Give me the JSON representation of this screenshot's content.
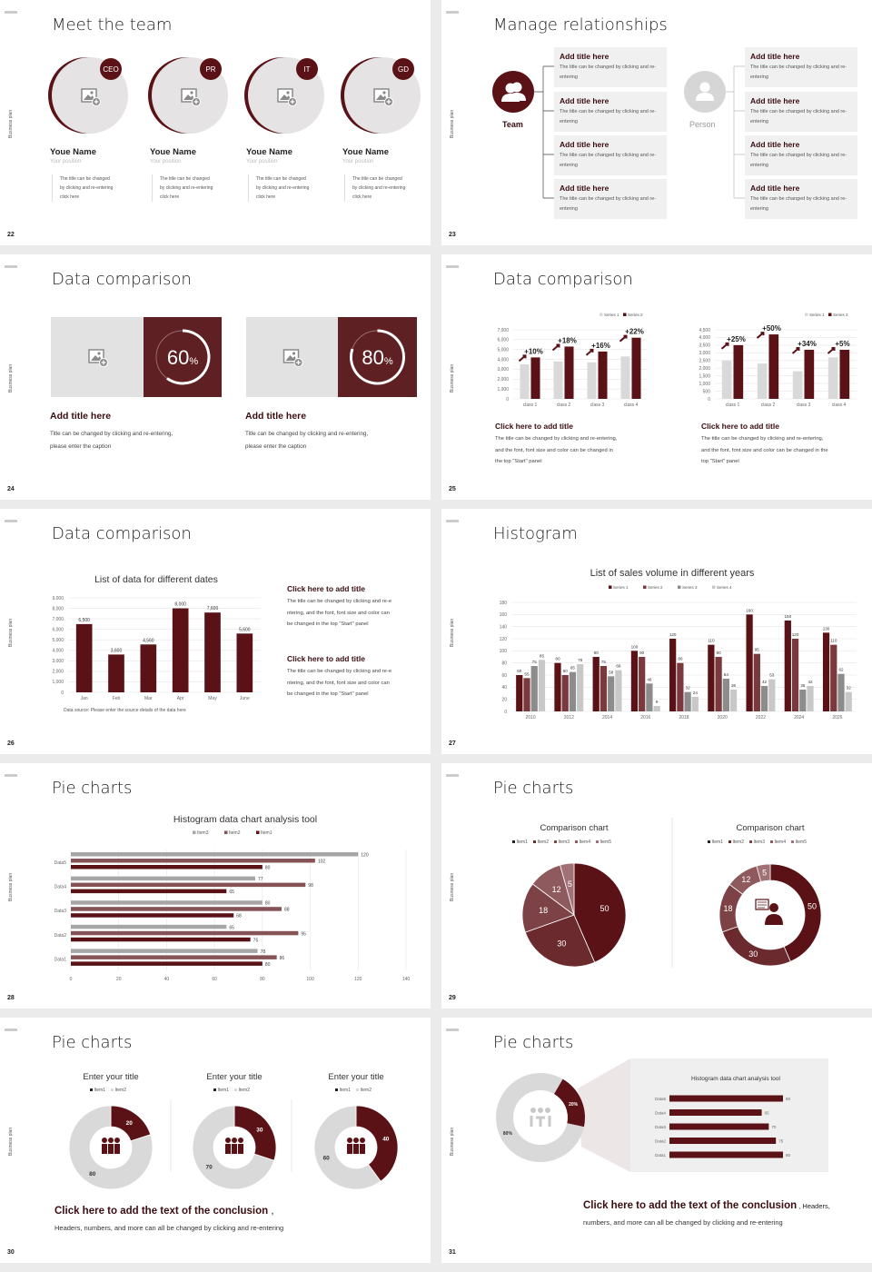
{
  "common": {
    "side_label": "Business plan"
  },
  "s22": {
    "number": "22",
    "title": "Meet the team",
    "members": [
      {
        "badge": "CEO",
        "name": "Youe Name",
        "position": "Your position",
        "desc": [
          "The title can be changed",
          "by clicking and re-entering",
          "click here"
        ]
      },
      {
        "badge": "PR",
        "name": "Youe Name",
        "position": "Your position",
        "desc": [
          "The title can be changed",
          "by clicking and re-entering",
          "click here"
        ]
      },
      {
        "badge": "IT",
        "name": "Youe Name",
        "position": "Your position",
        "desc": [
          "The title can be changed",
          "by clicking and re-entering",
          "click here"
        ]
      },
      {
        "badge": "GD",
        "name": "Youe Name",
        "position": "Your position",
        "desc": [
          "The title can be changed",
          "by clicking and re-entering",
          "click here"
        ]
      }
    ]
  },
  "s23": {
    "number": "23",
    "title": "Manage relationships",
    "team_label": "Team",
    "person_label": "Person",
    "box_title": "Add title here",
    "box_text": "The title can be changed by clicking and re-entering"
  },
  "s24": {
    "number": "24",
    "title": "Data comparison",
    "cards": [
      {
        "percent": "60",
        "unit": "%",
        "value": 0.6,
        "title": "Add title here",
        "text1": "Title can be changed by clicking and re-entering,",
        "text2": "please enter the caption"
      },
      {
        "percent": "80",
        "unit": "%",
        "value": 0.8,
        "title": "Add title here",
        "text1": "Title can be changed by clicking and re-entering,",
        "text2": "please enter the caption"
      }
    ]
  },
  "s25": {
    "number": "25",
    "title": "Data comparison",
    "blocks": [
      {
        "title": "Click here to add title",
        "lines": [
          "The title can be changed by clicking and re-entering,",
          "and the font, font size and color can be changed in",
          "the top \"Start\" panel"
        ]
      },
      {
        "title": "Click here to add title",
        "lines": [
          "The title can be changed by clicking and re-entering,",
          "and the font, font size and color can be changed in the",
          "top \"Start\" panel"
        ]
      }
    ]
  },
  "s26": {
    "number": "26",
    "title": "Data comparison",
    "source": "Data source: Please enter the source details of the data here",
    "blocks": [
      {
        "title": "Click here to add title",
        "lines": [
          "The title can be changed by clicking and re-e",
          "ntering, and the font, font size and color can",
          "be changed in the top \"Start\" panel"
        ]
      },
      {
        "title": "Click here to add title",
        "lines": [
          "The title can be changed by clicking and re-e",
          "ntering, and the font, font size and color can",
          "be changed in the top \"Start\" panel"
        ]
      }
    ]
  },
  "s27": {
    "number": "27",
    "title": "Histogram"
  },
  "s28": {
    "number": "28",
    "title": "Pie charts"
  },
  "s29": {
    "number": "29",
    "title": "Pie charts"
  },
  "s30": {
    "number": "30",
    "title": "Pie charts",
    "conclusion": "Click here to add the text of the conclusion",
    "conclusion_sep": " ,",
    "text": "Headers, numbers, and more can all be changed by clicking and re-entering"
  },
  "s31": {
    "number": "31",
    "title": "Pie charts",
    "conclusion": "Click here to add the text of the conclusion",
    "conclusion_tail": " ,  Headers,",
    "text": "numbers, and more can all be changed by clicking and re-entering"
  },
  "colors": {
    "dark": "#5a1216",
    "mid": "#7a3a3d",
    "gray": "#d9d9d9",
    "midgray": "#8c8c8c",
    "lightgray": "#bfbfbf",
    "panel": "#f0f0f0"
  },
  "chart_data": [
    {
      "id": "s25a",
      "type": "bar",
      "categories": [
        "class 1",
        "class 2",
        "class 3",
        "class 4"
      ],
      "series": [
        {
          "name": "Series 1",
          "values": [
            3500,
            3800,
            3700,
            4300
          ]
        },
        {
          "name": "Series 2",
          "values": [
            4200,
            5300,
            4800,
            6200
          ]
        }
      ],
      "annotations": [
        "+10%",
        "+18%",
        "+16%",
        "+22%"
      ],
      "ylim": [
        0,
        7000
      ],
      "ystep": 1000,
      "grid": true,
      "legend": "top-right"
    },
    {
      "id": "s25b",
      "type": "bar",
      "categories": [
        "class 1",
        "class 2",
        "class 3",
        "class 4"
      ],
      "series": [
        {
          "name": "Series 1",
          "values": [
            2500,
            2300,
            1800,
            2700
          ]
        },
        {
          "name": "Series 2",
          "values": [
            3500,
            4200,
            3200,
            3200
          ]
        }
      ],
      "annotations": [
        "+25%",
        "+50%",
        "+34%",
        "+5%"
      ],
      "ylim": [
        0,
        4500
      ],
      "ystep": 500,
      "grid": true,
      "legend": "top-right"
    },
    {
      "id": "s26",
      "type": "bar",
      "title": "List of data for different dates",
      "categories": [
        "Jan",
        "Feb",
        "Mar",
        "Apr",
        "May",
        "June"
      ],
      "series": [
        {
          "values": [
            6500,
            3600,
            4560,
            8000,
            7600,
            5600
          ]
        }
      ],
      "data_labels": [
        "6,500",
        "3,600",
        "4,560",
        "8,000",
        "7,600",
        "5,600"
      ],
      "ylim": [
        0,
        9000
      ],
      "ystep": 1000,
      "grid": true
    },
    {
      "id": "s27",
      "type": "bar",
      "title": "List of sales volume in different years",
      "categories": [
        "2010",
        "2012",
        "2014",
        "2016",
        "2018",
        "2020",
        "2022",
        "2024",
        "2026"
      ],
      "series": [
        {
          "name": "Series 1",
          "values": [
            60,
            80,
            90,
            100,
            120,
            110,
            160,
            150,
            130
          ]
        },
        {
          "name": "Series 2",
          "values": [
            55,
            60,
            75,
            90,
            80,
            90,
            95,
            120,
            110
          ]
        },
        {
          "name": "Series 3",
          "values": [
            75,
            65,
            58,
            46,
            32,
            54,
            42,
            36,
            62
          ]
        },
        {
          "name": "Series 4",
          "values": [
            85,
            78,
            68,
            9,
            24,
            36,
            53,
            42,
            32
          ]
        }
      ],
      "ylim": [
        0,
        180
      ],
      "ystep": 20,
      "grid": true,
      "legend": "top"
    },
    {
      "id": "s28",
      "type": "bar",
      "orientation": "horizontal",
      "title": "Histogram data chart analysis tool",
      "categories": [
        "Data1",
        "Data2",
        "Data3",
        "Data4",
        "Data5"
      ],
      "series": [
        {
          "name": "Item3",
          "values": [
            78,
            65,
            80,
            77,
            120
          ]
        },
        {
          "name": "Item2",
          "values": [
            86,
            95,
            88,
            98,
            102
          ]
        },
        {
          "name": "Item1",
          "values": [
            80,
            75,
            68,
            65,
            80
          ]
        }
      ],
      "xlim": [
        0,
        140
      ],
      "xstep": 20,
      "grid": true,
      "legend": "top"
    },
    {
      "id": "s29a",
      "type": "pie",
      "title": "Comparison chart",
      "labels": [
        "Item1",
        "Item2",
        "Item3",
        "Item4",
        "Item5"
      ],
      "values": [
        50,
        30,
        18,
        12,
        5
      ],
      "legend": "top"
    },
    {
      "id": "s29b",
      "type": "pie",
      "donut": true,
      "title": "Comparison chart",
      "labels": [
        "Item1",
        "Item2",
        "Item3",
        "Item4",
        "Item5"
      ],
      "values": [
        50,
        30,
        18,
        12,
        5
      ],
      "legend": "top"
    },
    {
      "id": "s30a",
      "type": "pie",
      "donut": true,
      "title": "Enter your title",
      "labels": [
        "Item1",
        "Item2"
      ],
      "values": [
        20,
        80
      ],
      "legend": "top"
    },
    {
      "id": "s30b",
      "type": "pie",
      "donut": true,
      "title": "Enter your title",
      "labels": [
        "Item1",
        "Item2"
      ],
      "values": [
        30,
        70
      ],
      "legend": "top"
    },
    {
      "id": "s30c",
      "type": "pie",
      "donut": true,
      "title": "Enter your title",
      "labels": [
        "Item1",
        "Item2"
      ],
      "values": [
        40,
        60
      ],
      "legend": "top"
    },
    {
      "id": "s31a",
      "type": "pie",
      "donut": true,
      "labels": [
        "",
        ""
      ],
      "values": [
        20,
        80
      ],
      "data_labels": [
        "20%",
        "80%"
      ]
    },
    {
      "id": "s31b",
      "type": "bar",
      "orientation": "horizontal",
      "title": "Histogram data chart analysis tool",
      "categories": [
        "Data1",
        "Data2",
        "Data3",
        "Data4",
        "Data5"
      ],
      "series": [
        {
          "values": [
            80,
            75,
            70,
            65,
            80
          ]
        }
      ],
      "xlim": [
        0,
        80
      ]
    }
  ]
}
